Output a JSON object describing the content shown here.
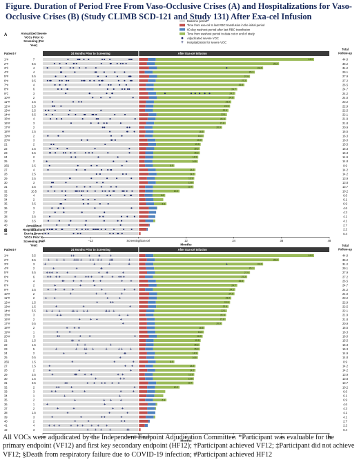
{
  "title": "Figure. Duration of Period Free From Vaso-Occlusive Crises (A) and Hospitalizations for Vaso-Occlusive Crises (B) (Study CLIMB SCD-121 and Study 131) After Exa-cel Infusion",
  "footnote": "All VOCs were adjudicated by the Independent Endpoint Adjudication Committee. *Participant was evaluable for the primary endpoint (VF12) and first key secondary endpoint (HF12); †Participant achieved VF12; ‡Participant did not achieve VF12; §Death from respiratory failure due to COVID-19 infection; #Participant achieved HF12",
  "colors": {
    "baseline": "#d9d9d9",
    "rbc_initial": "#c0504d",
    "washout": "#4f81bd",
    "followup": "#9bbb59",
    "voc_marker": "#1f2a6b"
  },
  "legend": [
    {
      "label": "Baseline period",
      "kind": "baseline"
    },
    {
      "label": "Time from exa-cel to last RBC transfusion in the initial period",
      "kind": "rbc_initial"
    },
    {
      "label": "60-day washout period after last RBC transfusion",
      "kind": "washout"
    },
    {
      "label": "Time from washout period to data cut or end of study",
      "kind": "followup"
    },
    {
      "label": "Adjudicated severe VOC",
      "kind": "voc"
    },
    {
      "label": "Hospitalization for severe VOC",
      "kind": "hosp"
    }
  ],
  "chart_data": [
    {
      "type": "bar",
      "panel": "A",
      "col_patient_header": "Patient #",
      "col_rate_header": "Annualized Severe VOCs Prior to Screening (Per Year)",
      "col_total_header": "Total Follow-up",
      "baseline_label": "24 Months Prior to Screening",
      "after_label": "After Exa-cel Infusion",
      "xlabel": "Months",
      "xticks": [
        -24,
        -12,
        0,
        12,
        24,
        36,
        48
      ],
      "xtick_labels": [
        "−24",
        "−12",
        "Screening/Exa-cel",
        "12",
        "24",
        "36",
        "48"
      ],
      "xlim": [
        -24,
        48
      ],
      "patients": [
        "1*#",
        "2*#",
        "3*‡",
        "4*#",
        "5*#",
        "6*#",
        "7*#",
        "8*#",
        "9*‡",
        "10*#",
        "11*#",
        "12*#",
        "13*#",
        "14*#",
        "15*#",
        "16*#",
        "17*#",
        "18*#",
        "19*#",
        "20*#",
        "21",
        "22",
        "23",
        "24",
        "25",
        "26§",
        "27",
        "28",
        "29",
        "30",
        "31",
        "32",
        "33",
        "34",
        "35",
        "36",
        "37",
        "38",
        "39",
        "40",
        "41",
        "42"
      ],
      "rates": [
        "7",
        "8.5",
        "4",
        "4",
        "5.5",
        "9.5",
        "4",
        "6",
        "3",
        "2",
        "2.5",
        "2.5",
        "2.5",
        "6.5",
        "4",
        "3",
        "2",
        "2.5",
        "2",
        "3",
        "2",
        "2.5",
        "5.5",
        "2",
        "2",
        "2.5",
        "4",
        "2.5",
        "3.5",
        "3",
        "3.5",
        "10.5",
        "4",
        "2",
        "3.5",
        "3",
        "2",
        "3.5",
        "3.5",
        "2",
        "9.5",
        "4.5"
      ],
      "total_followup": [
        44.0,
        35.2,
        31.2,
        29.1,
        27.9,
        27.2,
        26.5,
        24.7,
        24.2,
        24.0,
        23.2,
        22.9,
        22.5,
        22.1,
        21.9,
        21.8,
        20.9,
        16.5,
        16.3,
        16.0,
        15.5,
        15.3,
        15.3,
        14.9,
        14.8,
        8.9,
        14.2,
        14.2,
        13.9,
        13.8,
        13.7,
        10.2,
        6.6,
        6.1,
        6.9,
        4.6,
        4.3,
        4.1,
        4.1,
        2.7,
        2.2,
        0.4
      ],
      "vocs_after_infusion": [
        {
          "patient": "3*‡",
          "months": [
            22.2
          ]
        },
        {
          "patient": "9*‡",
          "months": [
            6.7,
            13.3,
            14.3,
            15.4,
            16.7,
            17.9
          ]
        }
      ]
    },
    {
      "type": "bar",
      "panel": "B",
      "col_patient_header": "Patient #",
      "col_rate_header": "Annualized Hospitalizations Due to Severe VOCs Prior to Screening (Per Year)",
      "col_total_header": "Total Follow-up",
      "baseline_label": "24 Months Prior to Screening",
      "after_label": "After Exa-cel Infusion",
      "xlabel": "Months",
      "xticks": [
        -24,
        -12,
        0,
        12,
        24,
        36,
        48
      ],
      "xtick_labels": [
        "−24",
        "−12",
        "Screening/Exa-cel",
        "12",
        "24",
        "36",
        "48"
      ],
      "xlim": [
        -24,
        48
      ],
      "patients": [
        "1*#",
        "2*#",
        "3*#",
        "4*#",
        "5*#",
        "6*#",
        "7*#",
        "8*#",
        "9*#",
        "10*#",
        "11*#",
        "12*#",
        "13*#",
        "14*#",
        "15*#",
        "16*#",
        "17*#",
        "18*#",
        "19*#",
        "20*#",
        "21",
        "22",
        "23",
        "24",
        "25",
        "26§",
        "27",
        "28",
        "29",
        "30",
        "31",
        "32",
        "33",
        "34",
        "35",
        "36",
        "37",
        "38",
        "39",
        "40",
        "41",
        "42"
      ],
      "rates": [
        "3.5",
        "8.5",
        "3",
        "2",
        "5.5",
        "6",
        "4",
        "2",
        "3.5",
        "2",
        "2",
        "1.5",
        "1.5",
        "5.5",
        "3",
        "2",
        "0.5",
        "2",
        "1",
        "3",
        "1.5",
        "1.5",
        "5",
        "2",
        "0.5",
        "1.5",
        "1.5",
        "2",
        "3.5",
        "1.5",
        "3.5",
        "2",
        "3",
        "1",
        "2",
        "1",
        "2",
        "1.5",
        "3",
        "2",
        "4",
        "3"
      ],
      "total_followup": [
        44.0,
        35.2,
        31.2,
        29.1,
        27.9,
        27.2,
        26.5,
        24.7,
        24.2,
        24.0,
        23.2,
        22.9,
        22.5,
        22.1,
        21.9,
        21.8,
        20.9,
        16.5,
        16.3,
        16.0,
        15.5,
        15.3,
        15.3,
        14.9,
        14.8,
        8.9,
        14.2,
        14.2,
        13.9,
        13.8,
        13.7,
        10.2,
        6.6,
        6.1,
        6.9,
        4.6,
        4.3,
        4.1,
        4.1,
        2.7,
        2.2,
        0.4
      ],
      "hospitalizations_after_infusion": [
        {
          "patient": "3*#",
          "months": [
            22.2
          ]
        }
      ]
    }
  ]
}
